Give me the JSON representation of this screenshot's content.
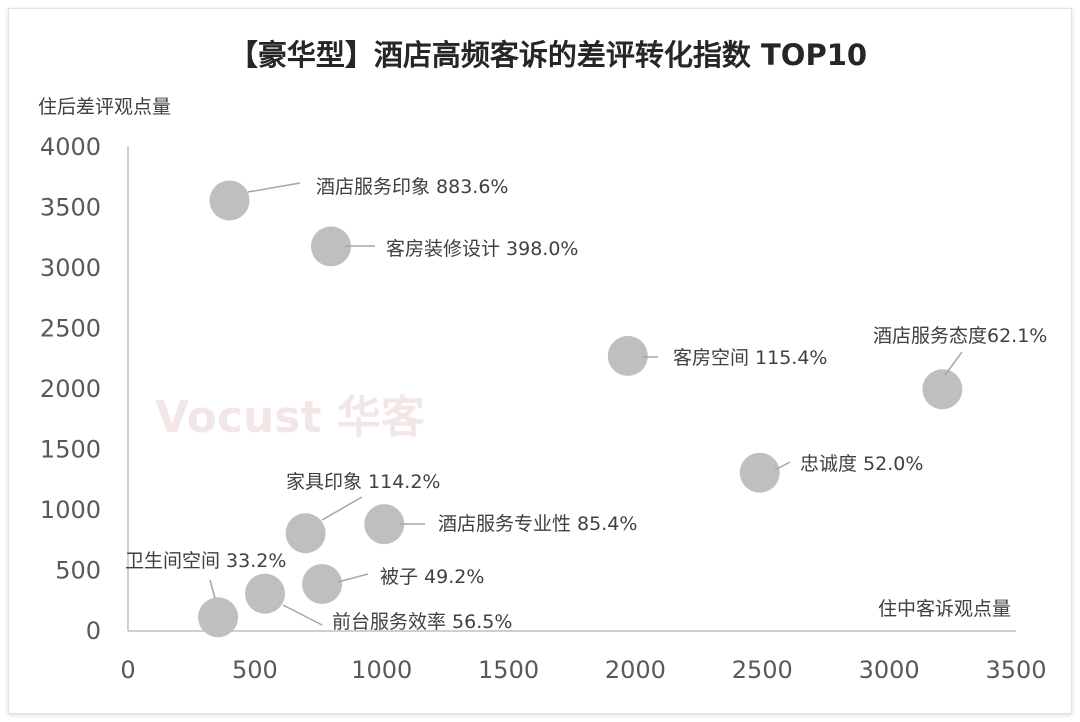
{
  "chart_data": {
    "type": "scatter",
    "title": "【豪华型】酒店高频客诉的差评转化指数 TOP10",
    "xlabel": "住中客诉观点量",
    "ylabel": "住后差评观点量",
    "xlim": [
      0,
      3500
    ],
    "ylim": [
      0,
      4000
    ],
    "xticks": [
      0,
      500,
      1000,
      1500,
      2000,
      2500,
      3000,
      3500
    ],
    "yticks": [
      0,
      500,
      1000,
      1500,
      2000,
      2500,
      3000,
      3500,
      4000
    ],
    "grid": false,
    "watermark": "Vocust 华客",
    "marker_color": "#bfbfbf",
    "points": [
      {
        "label": "酒店服务印象 883.6%",
        "x": 400,
        "y": 3550
      },
      {
        "label": "客房装修设计 398.0%",
        "x": 800,
        "y": 3170
      },
      {
        "label": "客房空间 115.4%",
        "x": 1970,
        "y": 2265
      },
      {
        "label": "酒店服务态度62.1%",
        "x": 3210,
        "y": 1990
      },
      {
        "label": "忠诚度 52.0%",
        "x": 2490,
        "y": 1300
      },
      {
        "label": "酒店服务专业性 85.4%",
        "x": 1010,
        "y": 875
      },
      {
        "label": "家具印象 114.2%",
        "x": 700,
        "y": 800
      },
      {
        "label": "被子 49.2%",
        "x": 765,
        "y": 380
      },
      {
        "label": "前台服务效率 56.5%",
        "x": 540,
        "y": 300
      },
      {
        "label": "卫生间空间 33.2%",
        "x": 355,
        "y": 105
      }
    ]
  }
}
